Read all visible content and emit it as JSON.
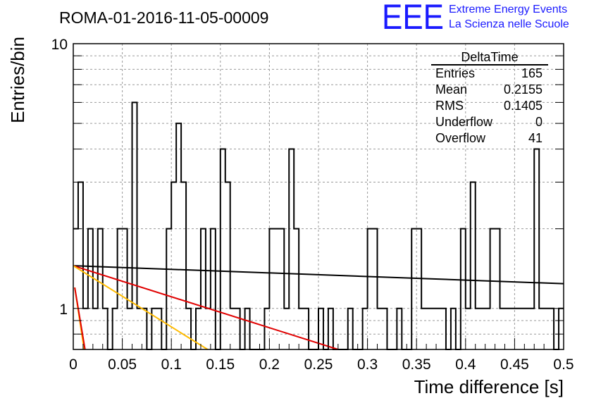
{
  "chart_data": {
    "type": "histogram",
    "title": "ROMA-01-2016-11-05-00009",
    "xlabel": "Time difference [s]",
    "ylabel": "Entries/bin",
    "xlim": [
      0,
      0.5
    ],
    "ylim": [
      0.7,
      10
    ],
    "log_y": true,
    "grid": true,
    "x_ticks": [
      0,
      0.05,
      0.1,
      0.15,
      0.2,
      0.25,
      0.3,
      0.35,
      0.4,
      0.45,
      0.5
    ],
    "x_tick_labels": [
      "0",
      "0.05",
      "0.1",
      "0.15",
      "0.2",
      "0.25",
      "0.3",
      "0.35",
      "0.4",
      "0.45",
      "0.5"
    ],
    "y_major_ticks": [
      1,
      10
    ],
    "y_major_labels": [
      "1",
      "10"
    ],
    "bin_width": 0.005,
    "bin_values": [
      2,
      3,
      1,
      2,
      1,
      2,
      1,
      0,
      1,
      2,
      2,
      1,
      6,
      1,
      1,
      0,
      1,
      1,
      0,
      2,
      3,
      5,
      3,
      1,
      0,
      1,
      2,
      1,
      2,
      0,
      4,
      3,
      1,
      1,
      0,
      1,
      0,
      0,
      0,
      1,
      2,
      2,
      2,
      1,
      4,
      2,
      1,
      1,
      0,
      0,
      1,
      0,
      1,
      0,
      0,
      0,
      1,
      0,
      0,
      1,
      2,
      2,
      1,
      1,
      0,
      0,
      1,
      0,
      0,
      2,
      2,
      1,
      1,
      1,
      1,
      1,
      0,
      1,
      0,
      2,
      1,
      3,
      1,
      1,
      1,
      2,
      2,
      1,
      1,
      1,
      1,
      1,
      1,
      1,
      4,
      1,
      1,
      1,
      0,
      1
    ],
    "fits": [
      {
        "color": "#000000",
        "values": [
          [
            0,
            1.45
          ],
          [
            0.5,
            1.24
          ]
        ]
      },
      {
        "color": "#e00000",
        "values": [
          [
            0,
            1.45
          ],
          [
            0.27,
            0.7
          ]
        ]
      },
      {
        "color": "#ffbb00",
        "values": [
          [
            0,
            1.45
          ],
          [
            0.137,
            0.7
          ]
        ]
      },
      {
        "color": "#ffbb00",
        "values": [
          [
            0.0015,
            1.2
          ],
          [
            0.011,
            0.7
          ]
        ]
      },
      {
        "color": "#e00000",
        "values": [
          [
            0.0015,
            1.2
          ],
          [
            0.012,
            0.7
          ]
        ]
      }
    ],
    "stats": {
      "name": "DeltaTime",
      "rows": [
        {
          "label": "Entries",
          "value": "165"
        },
        {
          "label": "Mean",
          "value": "0.2155"
        },
        {
          "label": "RMS",
          "value": "0.1405"
        },
        {
          "label": "Underflow",
          "value": "0"
        },
        {
          "label": "Overflow",
          "value": "41"
        }
      ]
    }
  },
  "logo": {
    "mark": "EEE",
    "line1": "Extreme Energy Events",
    "line2": "La Scienza nelle Scuole",
    "color": "#1a1aff"
  }
}
